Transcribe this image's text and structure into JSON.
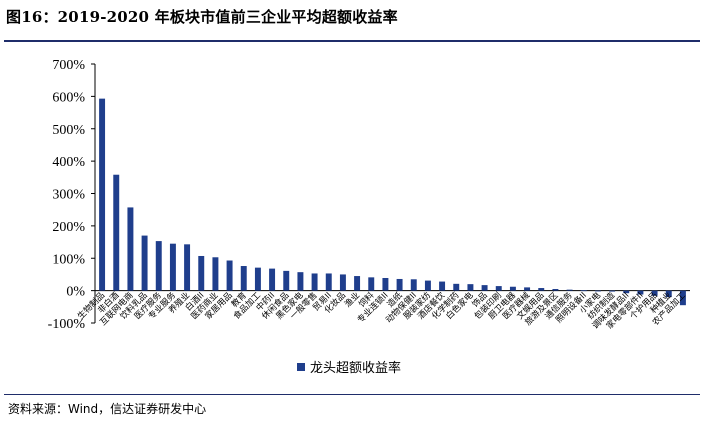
{
  "header": {
    "title": "图16：2019-2020 年板块市值前三企业平均超额收益率"
  },
  "footer": {
    "source": "资料来源：Wind，信达证券研发中心"
  },
  "colors": {
    "bar": "#1f3e8c",
    "rule": "#1f2d6a"
  },
  "chart_data": {
    "type": "bar",
    "title": "",
    "xlabel": "",
    "ylabel": "",
    "ylim": [
      -100,
      700
    ],
    "ytick_values": [
      -100,
      0,
      100,
      200,
      300,
      400,
      500,
      600,
      700
    ],
    "ytick_labels": [
      "-100%",
      "0%",
      "100%",
      "200%",
      "300%",
      "400%",
      "500%",
      "600%",
      "700%"
    ],
    "legend_position": "bottom-center",
    "grid": false,
    "categories": [
      "生物制品",
      "非白酒",
      "互联网电商",
      "饮料乳品",
      "医疗服务",
      "专业服务",
      "养殖业",
      "白酒II",
      "医药商业",
      "家居用品",
      "教育",
      "食品加工",
      "中药II",
      "休闲食品",
      "黑色家电",
      "一般零售",
      "贸易II",
      "化妆品",
      "渔业",
      "饲料",
      "专业连锁II",
      "造纸",
      "动物保健II",
      "服装家纺",
      "酒店餐饮",
      "化学制药",
      "白色家电",
      "饰品",
      "包装印刷",
      "厨卫电器",
      "医疗器械",
      "文娱用品",
      "旅游及景区",
      "通信服务",
      "照明设备II",
      "小家电",
      "纺织制造",
      "调味发酵品II",
      "家电零部件II",
      "个护用品",
      "种植业",
      "农产品加工"
    ],
    "series": [
      {
        "name": "龙头超额收益率",
        "values": [
          593,
          358,
          257,
          170,
          153,
          145,
          143,
          107,
          103,
          93,
          76,
          71,
          68,
          61,
          57,
          53,
          53,
          50,
          45,
          41,
          39,
          36,
          35,
          31,
          28,
          21,
          20,
          17,
          14,
          12,
          10,
          8,
          5,
          3,
          1,
          0,
          -3,
          -8,
          -12,
          -16,
          -20,
          -45
        ]
      }
    ]
  }
}
